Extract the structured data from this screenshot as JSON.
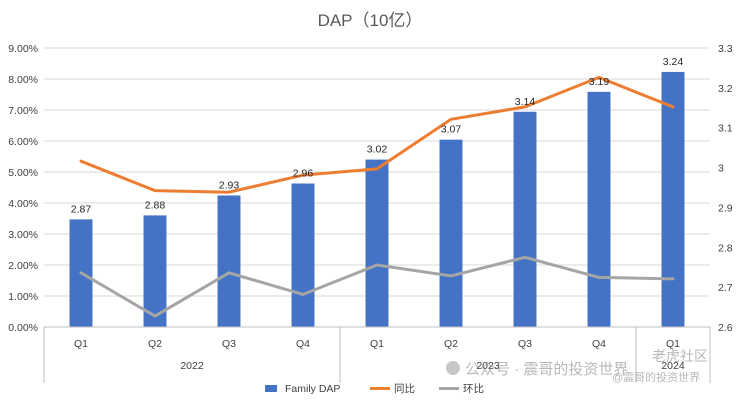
{
  "chart_data": {
    "type": "bar",
    "title": "DAP（10亿）",
    "categories": [
      "Q1",
      "Q2",
      "Q3",
      "Q4",
      "Q1",
      "Q2",
      "Q3",
      "Q4",
      "Q1"
    ],
    "years": [
      {
        "label": "2022",
        "count": 4
      },
      {
        "label": "2023",
        "count": 4
      },
      {
        "label": "2024",
        "count": 1
      }
    ],
    "series": [
      {
        "name": "Family DAP",
        "type": "bar",
        "axis": "right",
        "color": "#4472c4",
        "values": [
          2.87,
          2.88,
          2.93,
          2.96,
          3.02,
          3.07,
          3.14,
          3.19,
          3.24
        ],
        "labels": [
          "2.87",
          "2.88",
          "2.93",
          "2.96",
          "3.02",
          "3.07",
          "3.14",
          "3.19",
          "3.24"
        ]
      },
      {
        "name": "同比",
        "type": "line",
        "axis": "left",
        "color": "#ed7d31",
        "values": [
          5.35,
          4.4,
          4.35,
          4.9,
          5.1,
          6.7,
          7.1,
          8.05,
          7.1
        ]
      },
      {
        "name": "环比",
        "type": "line",
        "axis": "left",
        "color": "#a5a5a5",
        "values": [
          1.75,
          0.35,
          1.75,
          1.05,
          2.0,
          1.65,
          2.25,
          1.6,
          1.55
        ]
      }
    ],
    "left_axis": {
      "min": 0,
      "max": 9,
      "step": 1,
      "tick_labels": [
        "0.00%",
        "1.00%",
        "2.00%",
        "3.00%",
        "4.00%",
        "5.00%",
        "6.00%",
        "7.00%",
        "8.00%",
        "9.00%"
      ]
    },
    "right_axis": {
      "min": 2.6,
      "max": 3.3,
      "step": 0.1,
      "tick_labels": [
        "2.6",
        "2.7",
        "2.8",
        "2.9",
        "3",
        "3.1",
        "3.2",
        "3.3"
      ]
    },
    "grid": true,
    "legend": "bottom"
  },
  "watermark": "公众号 · 震哥的投资世界",
  "watermark2": "老虎社区",
  "watermark3": "@震哥的投资世界"
}
